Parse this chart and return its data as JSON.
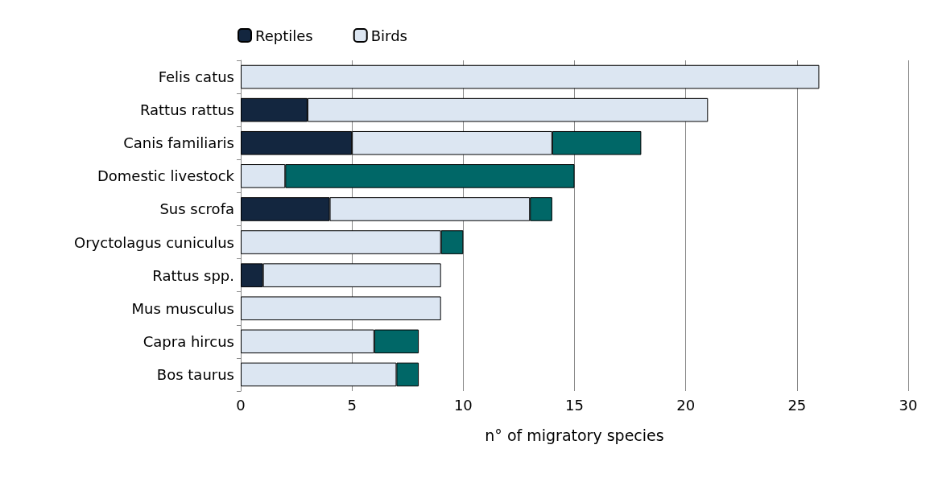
{
  "chart_data": {
    "type": "bar",
    "orientation": "horizontal",
    "stacked": true,
    "xlabel": "n° of migratory species",
    "categories": [
      "Felis catus",
      "Rattus rattus",
      "Canis familiaris",
      "Domestic livestock",
      "Sus scrofa",
      "Oryctolagus cuniculus",
      "Rattus spp.",
      "Mus musculus",
      "Capra hircus",
      "Bos taurus"
    ],
    "series": [
      {
        "name": "Reptiles",
        "color": "#13263f",
        "values": [
          null,
          3,
          5,
          null,
          4,
          null,
          1,
          null,
          null,
          null
        ]
      },
      {
        "name": "Birds",
        "color": "#dce6f2",
        "values": [
          26,
          18,
          9,
          2,
          9,
          9,
          8,
          9,
          6,
          7
        ]
      },
      {
        "color": "#006767",
        "values": [
          null,
          null,
          4,
          13,
          1,
          1,
          null,
          null,
          2,
          1
        ]
      }
    ],
    "xlim": [
      0,
      30
    ],
    "xticks": [
      0,
      5,
      10,
      15,
      20,
      25,
      30
    ],
    "grid": "x",
    "legend": "top left"
  }
}
